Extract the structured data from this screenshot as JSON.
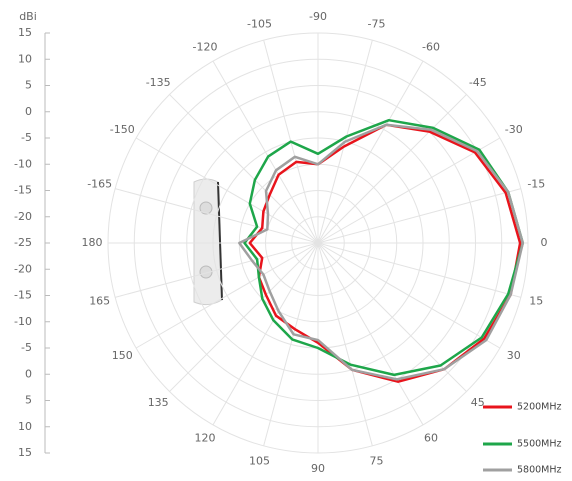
{
  "chart_data": {
    "type": "polar-line",
    "radial_axis_label": "dBi",
    "rlim": [
      -25,
      15
    ],
    "rticks": [
      -25,
      -20,
      -15,
      -10,
      -5,
      0,
      5,
      10,
      15
    ],
    "xlim": [
      -180,
      180
    ],
    "xticks": [
      -165,
      -150,
      -135,
      -120,
      -105,
      -90,
      -75,
      -60,
      -45,
      -30,
      -15,
      0,
      15,
      30,
      45,
      60,
      75,
      90,
      105,
      120,
      135,
      150,
      165,
      180
    ],
    "grid": true,
    "legend": "lower right",
    "x": [
      -180,
      -165,
      -150,
      -135,
      -120,
      -105,
      -90,
      -75,
      -60,
      -45,
      -30,
      -15,
      0,
      15,
      30,
      45,
      60,
      75,
      90,
      105,
      120,
      135,
      150,
      165
    ],
    "series": [
      {
        "name": "5200MHz",
        "color": "#e8141c",
        "values": [
          -12,
          -14,
          -13,
          -12,
          -10,
          -9,
          -10,
          -6,
          1,
          5,
          9.5,
          12,
          13.5,
          13,
          11.5,
          9,
          5.5,
          0,
          -6,
          -8,
          -9,
          -11,
          -12,
          -14
        ]
      },
      {
        "name": "5500MHz",
        "color": "#1ea64a",
        "values": [
          -11,
          -13,
          -10,
          -8,
          -6,
          -5,
          -8,
          -4,
          2,
          6,
          10.5,
          12.5,
          14,
          12.5,
          11,
          8,
          4,
          -1,
          -5,
          -6,
          -8,
          -10,
          -12,
          -13
        ]
      },
      {
        "name": "5800MHz",
        "color": "#a0a0a0",
        "values": [
          -10,
          -15,
          -14,
          -11,
          -9,
          -8,
          -10,
          -5,
          1,
          5.5,
          10,
          12.5,
          14,
          13,
          12,
          9,
          5,
          0,
          -6.5,
          -7,
          -10,
          -12,
          -13,
          -12
        ]
      }
    ]
  }
}
